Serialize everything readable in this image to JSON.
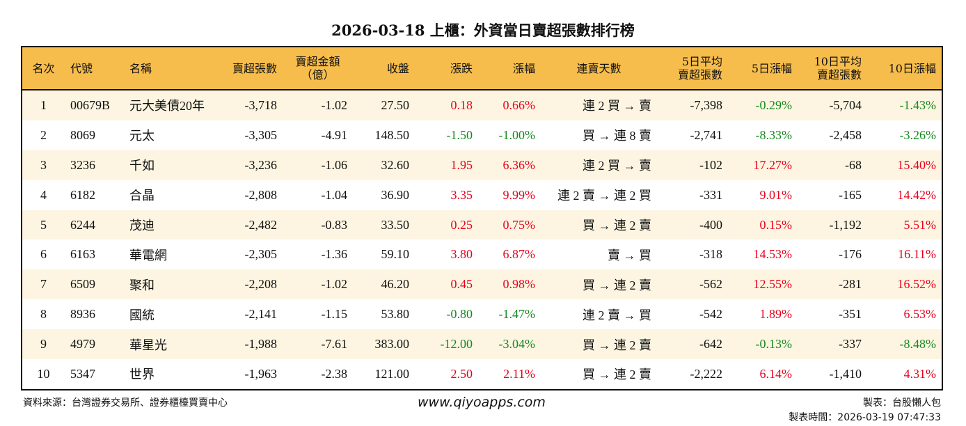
{
  "title": "2026-03-18 上櫃：外資當日賣超張數排行榜",
  "colors": {
    "header": "#f7bd4c",
    "odd_row": "#fdf5e1",
    "up": "#e8001c",
    "down": "#14891e"
  },
  "headers": [
    "名次",
    "代號",
    "名稱",
    "賣超張數",
    "賣超金額\n（億）",
    "收盤",
    "漲跌",
    "漲幅",
    "連賣天數",
    "5日平均\n賣超張數",
    "5日漲幅",
    "10日平均\n賣超張數",
    "10日漲幅"
  ],
  "rows": [
    [
      "1",
      "00679B",
      "元大美債20年",
      "-3,718",
      "-1.02",
      "27.50",
      "0.18",
      "0.66%",
      "連 2 買 → 賣",
      "-7,398",
      "-0.29%",
      "-5,704",
      "-1.43%"
    ],
    [
      "2",
      "8069",
      "元太",
      "-3,305",
      "-4.91",
      "148.50",
      "-1.50",
      "-1.00%",
      "買 → 連 8 賣",
      "-2,741",
      "-8.33%",
      "-2,458",
      "-3.26%"
    ],
    [
      "3",
      "3236",
      "千如",
      "-3,236",
      "-1.06",
      "32.60",
      "1.95",
      "6.36%",
      "連 2 買 → 賣",
      "-102",
      "17.27%",
      "-68",
      "15.40%"
    ],
    [
      "4",
      "6182",
      "合晶",
      "-2,808",
      "-1.04",
      "36.90",
      "3.35",
      "9.99%",
      "連 2 賣 → 連 2 買",
      "-331",
      "9.01%",
      "-165",
      "14.42%"
    ],
    [
      "5",
      "6244",
      "茂迪",
      "-2,482",
      "-0.83",
      "33.50",
      "0.25",
      "0.75%",
      "買 → 連 2 賣",
      "-400",
      "0.15%",
      "-1,192",
      "5.51%"
    ],
    [
      "6",
      "6163",
      "華電網",
      "-2,305",
      "-1.36",
      "59.10",
      "3.80",
      "6.87%",
      "賣 → 買",
      "-318",
      "14.53%",
      "-176",
      "16.11%"
    ],
    [
      "7",
      "6509",
      "聚和",
      "-2,208",
      "-1.02",
      "46.20",
      "0.45",
      "0.98%",
      "買 → 連 2 賣",
      "-562",
      "12.55%",
      "-281",
      "16.52%"
    ],
    [
      "8",
      "8936",
      "國統",
      "-2,141",
      "-1.15",
      "53.80",
      "-0.80",
      "-1.47%",
      "連 2 賣 → 買",
      "-542",
      "1.89%",
      "-351",
      "6.53%"
    ],
    [
      "9",
      "4979",
      "華星光",
      "-1,988",
      "-7.61",
      "383.00",
      "-12.00",
      "-3.04%",
      "買 → 連 2 賣",
      "-642",
      "-0.13%",
      "-337",
      "-8.48%"
    ],
    [
      "10",
      "5347",
      "世界",
      "-1,963",
      "-2.38",
      "121.00",
      "2.50",
      "2.11%",
      "買 → 連 2 賣",
      "-2,222",
      "6.14%",
      "-1,410",
      "4.31%"
    ]
  ],
  "footer": {
    "source": "資料來源：台灣證券交易所、證券櫃檯買賣中心",
    "site": "www.qiyoapps.com",
    "maker": "製表：台股懶人包",
    "time": "製表時間：2026-03-19 07:47:33"
  }
}
